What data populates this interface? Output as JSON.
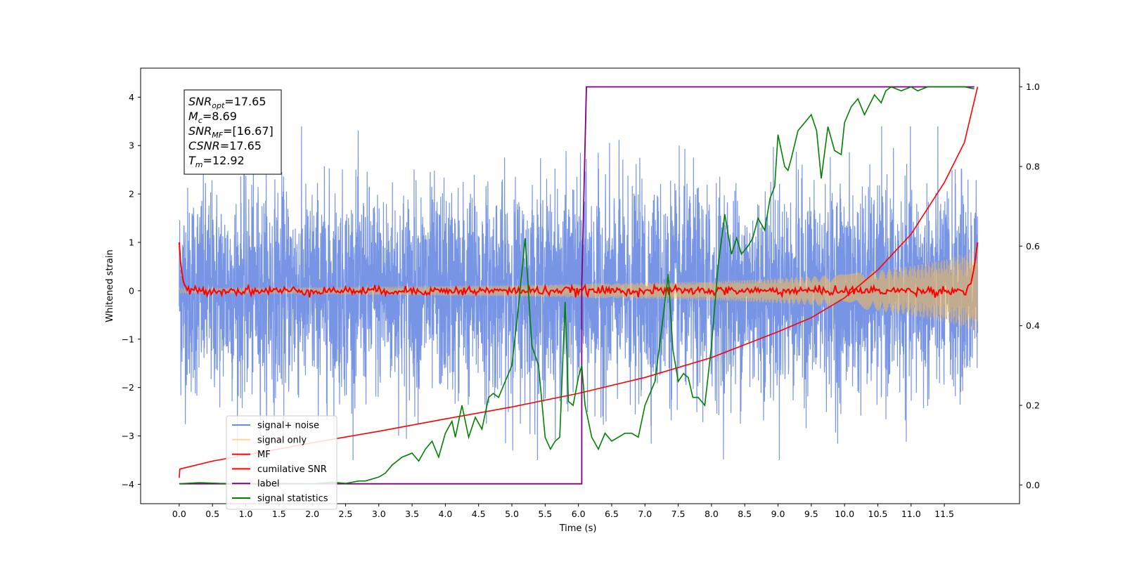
{
  "chart_data": {
    "type": "line",
    "title": "",
    "xlabel": "Time (s)",
    "ylabel": "Whitened strain",
    "xlim": [
      -0.58,
      12.63
    ],
    "ylim": [
      -4.4,
      4.6
    ],
    "y2lim": [
      -0.047,
      1.047
    ],
    "grid": false,
    "legend_position": "lower-left",
    "x_ticks": [
      "0.0",
      "0.5",
      "1.0",
      "1.5",
      "2.0",
      "2.5",
      "3.0",
      "3.5",
      "4.0",
      "4.5",
      "5.0",
      "5.5",
      "6.0",
      "6.5",
      "7.0",
      "7.5",
      "8.0",
      "8.5",
      "9.0",
      "9.5",
      "10.0",
      "10.5",
      "11.0",
      "11.5"
    ],
    "y_ticks": [
      "4",
      "3",
      "2",
      "1",
      "0",
      "−1",
      "−2",
      "−3",
      "−4"
    ],
    "y2_ticks": [
      "1.0",
      "0.8",
      "0.6",
      "0.4",
      "0.2",
      "0.0"
    ],
    "info_box": [
      {
        "sym": "SNR",
        "sub": "opt",
        "val": "=17.65"
      },
      {
        "sym": "M",
        "sub": "c",
        "val": "=8.69"
      },
      {
        "sym": "SNR",
        "sub": "MF",
        "val": "=[16.67]"
      },
      {
        "sym": "CSNR",
        "sub": "",
        "val": "=17.65"
      },
      {
        "sym": "T",
        "sub": "m",
        "val": "=12.92"
      }
    ],
    "series": [
      {
        "name": "signal+ noise",
        "axis": "left",
        "color": "#6b8be3",
        "description": "white noise, std ~1.05, range approx -3.5..3.4, sampled across 0..12 s"
      },
      {
        "name": "signal only",
        "axis": "left",
        "color": "#ffc04d",
        "description": "chirp envelope growing from ~0.05 at t=0 to ~0.85 at t=12",
        "envelope": {
          "x": [
            0,
            2,
            4,
            6,
            8,
            9,
            10,
            10.5,
            11,
            11.5,
            11.9,
            12
          ],
          "y": [
            0.05,
            0.07,
            0.1,
            0.14,
            0.2,
            0.26,
            0.34,
            0.42,
            0.52,
            0.65,
            0.8,
            0.85
          ]
        }
      },
      {
        "name": "MF",
        "axis": "left",
        "color": "#ff0000",
        "x": [
          0,
          0.02,
          0.05,
          0.08,
          0.12,
          11.85,
          11.9,
          11.95,
          12
        ],
        "y": [
          1.0,
          0.6,
          0.25,
          0.12,
          0.05,
          0.1,
          0.15,
          0.5,
          1.0
        ],
        "description": "fluctuates around 0 with amplitude ~0.1 between 0.1 s and 11.9 s"
      },
      {
        "name": "cumilative SNR",
        "axis": "right",
        "color": "#ff0000",
        "x": [
          0.0,
          0.01,
          0.5,
          1.0,
          2.0,
          3.0,
          4.0,
          5.0,
          6.0,
          7.0,
          8.0,
          9.0,
          9.5,
          10.0,
          10.5,
          11.0,
          11.5,
          11.8,
          12.0
        ],
        "y": [
          0.018,
          0.04,
          0.06,
          0.075,
          0.106,
          0.135,
          0.166,
          0.196,
          0.23,
          0.27,
          0.32,
          0.385,
          0.42,
          0.47,
          0.54,
          0.63,
          0.76,
          0.86,
          1.0
        ]
      },
      {
        "name": "label",
        "axis": "right",
        "color": "#800080",
        "x": [
          0.0,
          6.05,
          6.05,
          6.12,
          11.95
        ],
        "y": [
          0.003,
          0.003,
          0.5,
          1.0,
          1.0
        ]
      },
      {
        "name": "signal statistics",
        "axis": "right",
        "color": "#008000",
        "x": [
          0.0,
          0.3,
          0.6,
          1.0,
          1.5,
          2.0,
          2.3,
          2.5,
          2.7,
          2.8,
          3.0,
          3.1,
          3.2,
          3.35,
          3.5,
          3.6,
          3.7,
          3.8,
          3.9,
          4.0,
          4.1,
          4.15,
          4.25,
          4.35,
          4.45,
          4.55,
          4.65,
          4.72,
          4.8,
          4.9,
          5.0,
          5.1,
          5.2,
          5.3,
          5.4,
          5.5,
          5.58,
          5.65,
          5.72,
          5.8,
          5.85,
          5.92,
          6.0,
          6.05,
          6.1,
          6.2,
          6.3,
          6.4,
          6.5,
          6.6,
          6.7,
          6.8,
          6.9,
          7.0,
          7.05,
          7.15,
          7.25,
          7.35,
          7.42,
          7.5,
          7.58,
          7.65,
          7.72,
          7.8,
          7.9,
          8.0,
          8.1,
          8.2,
          8.3,
          8.38,
          8.45,
          8.55,
          8.62,
          8.7,
          8.8,
          8.88,
          8.95,
          9.0,
          9.05,
          9.1,
          9.15,
          9.2,
          9.3,
          9.4,
          9.5,
          9.58,
          9.65,
          9.75,
          9.85,
          9.95,
          10.0,
          10.1,
          10.2,
          10.3,
          10.45,
          10.55,
          10.62,
          10.7,
          10.85,
          11.0,
          11.1,
          11.25,
          11.4,
          11.6,
          11.8,
          11.95
        ],
        "y": [
          0.003,
          0.006,
          0.004,
          0.003,
          0.004,
          0.003,
          0.007,
          0.004,
          0.01,
          0.01,
          0.02,
          0.03,
          0.05,
          0.07,
          0.08,
          0.06,
          0.09,
          0.11,
          0.07,
          0.13,
          0.16,
          0.12,
          0.2,
          0.12,
          0.17,
          0.14,
          0.22,
          0.23,
          0.22,
          0.26,
          0.3,
          0.45,
          0.62,
          0.35,
          0.3,
          0.12,
          0.09,
          0.11,
          0.12,
          0.46,
          0.21,
          0.2,
          0.27,
          0.3,
          0.2,
          0.12,
          0.09,
          0.13,
          0.11,
          0.12,
          0.13,
          0.13,
          0.12,
          0.2,
          0.22,
          0.26,
          0.39,
          0.53,
          0.34,
          0.26,
          0.28,
          0.27,
          0.22,
          0.22,
          0.2,
          0.35,
          0.55,
          0.68,
          0.58,
          0.62,
          0.58,
          0.6,
          0.62,
          0.67,
          0.64,
          0.72,
          0.75,
          0.88,
          0.84,
          0.8,
          0.79,
          0.82,
          0.89,
          0.91,
          0.93,
          0.89,
          0.77,
          0.9,
          0.84,
          0.83,
          0.91,
          0.95,
          0.97,
          0.93,
          0.98,
          0.96,
          0.99,
          1.0,
          0.99,
          1.0,
          0.99,
          1.0,
          1.0,
          1.0,
          1.0,
          0.995
        ]
      }
    ]
  }
}
